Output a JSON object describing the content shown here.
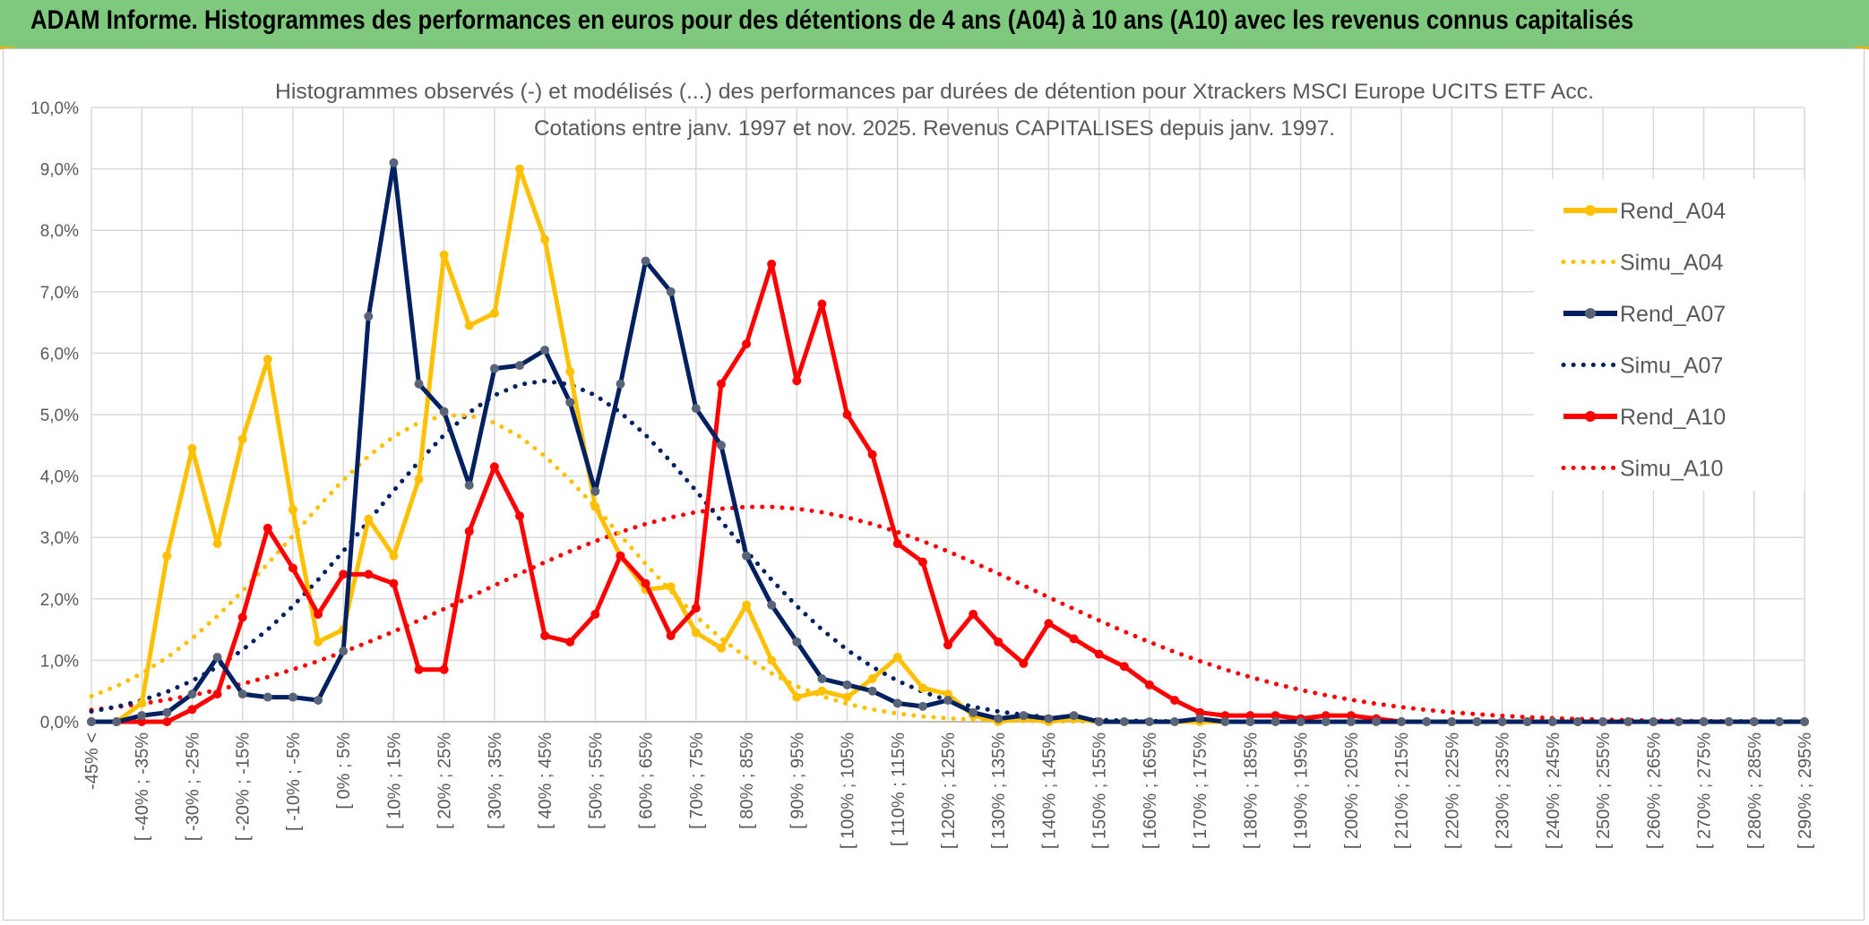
{
  "header": {
    "title": "ADAM Informe. Histogrammes des performances en euros pour des détentions de 4 ans (A04) à 10 ans (A10) avec les revenus connus capitalisés"
  },
  "colors": {
    "banner": "#7ec97e",
    "A04": "#ffc000",
    "A07": "#002060",
    "A10": "#ff0000",
    "marker_A07": "#5a6478"
  },
  "chart_data": {
    "type": "line",
    "title_line1": "Histogrammes observés (-) et modélisés (...) des performances par durées de détention pour Xtrackers MSCI Europe UCITS ETF Acc.",
    "title_line2": "Cotations entre janv. 1997 et nov. 2025. Revenus CAPITALISES depuis janv. 1997.",
    "ylim": [
      0,
      10
    ],
    "yticks": [
      "0,0%",
      "1,0%",
      "2,0%",
      "3,0%",
      "4,0%",
      "5,0%",
      "6,0%",
      "7,0%",
      "8,0%",
      "9,0%",
      "10,0%"
    ],
    "x_labels": [
      "-45% <",
      "[ -40% ; -35%",
      "[ -30% ; -25%",
      "[ -20% ; -15%",
      "[ -10% ; -5%",
      "[ 0% ; 5%",
      "[ 10% ; 15%",
      "[ 20% ; 25%",
      "[ 30% ; 35%",
      "[ 40% ; 45%",
      "[ 50% ; 55%",
      "[ 60% ; 65%",
      "[ 70% ; 75%",
      "[ 80% ; 85%",
      "[ 90% ; 95%",
      "[ 100% ; 105%",
      "[ 110% ; 115%",
      "[ 120% ; 125%",
      "[ 130% ; 135%",
      "[ 140% ; 145%",
      "[ 150% ; 155%",
      "[ 160% ; 165%",
      "[ 170% ; 175%",
      "[ 180% ; 185%",
      "[ 190% ; 195%",
      "[ 200% ; 205%",
      "[ 210% ; 215%",
      "[ 220% ; 225%",
      "[ 230% ; 235%",
      "[ 240% ; 245%",
      "[ 250% ; 255%",
      "[ 260% ; 265%",
      "[ 270% ; 275%",
      "[ 280% ; 285%",
      "[ 290% ; 295%"
    ],
    "n_points": 69,
    "series": [
      {
        "name": "Rend_A04",
        "kind": "observed",
        "color": "#ffc000",
        "values": [
          0,
          0,
          0.3,
          2.7,
          4.45,
          2.9,
          4.6,
          5.9,
          3.45,
          1.3,
          1.5,
          3.3,
          2.7,
          3.95,
          7.6,
          6.45,
          6.65,
          9.0,
          7.85,
          5.7,
          3.5,
          2.7,
          2.15,
          2.2,
          1.45,
          1.2,
          1.9,
          1.0,
          0.4,
          0.5,
          0.4,
          0.7,
          1.05,
          0.55,
          0.45,
          0.1,
          0,
          0.05,
          0,
          0.05,
          0,
          0,
          0,
          0,
          0,
          0,
          0,
          0,
          0,
          0,
          0,
          0,
          0,
          0,
          0,
          0,
          0,
          0,
          0,
          0,
          0,
          0,
          0,
          0,
          0,
          0,
          0,
          0,
          0
        ]
      },
      {
        "name": "Simu_A04",
        "kind": "model",
        "mu": 14.5,
        "sigma": 6.5,
        "peak": 5.0,
        "color": "#ffc000",
        "values": []
      },
      {
        "name": "Rend_A07",
        "kind": "observed",
        "color": "#002060",
        "values": [
          0,
          0,
          0.1,
          0.15,
          0.45,
          1.05,
          0.45,
          0.4,
          0.4,
          0.35,
          1.15,
          6.6,
          9.1,
          5.5,
          5.05,
          3.85,
          5.75,
          5.8,
          6.05,
          5.2,
          3.75,
          5.5,
          7.5,
          7.0,
          5.1,
          4.5,
          2.7,
          1.9,
          1.3,
          0.7,
          0.6,
          0.5,
          0.3,
          0.25,
          0.35,
          0.15,
          0.05,
          0.1,
          0.05,
          0.1,
          0,
          0,
          0,
          0,
          0.05,
          0,
          0,
          0,
          0,
          0,
          0,
          0,
          0,
          0,
          0,
          0,
          0,
          0,
          0,
          0,
          0,
          0,
          0,
          0,
          0,
          0,
          0,
          0,
          0
        ]
      },
      {
        "name": "Simu_A07",
        "kind": "model",
        "mu": 18.0,
        "sigma": 6.8,
        "peak": 5.55,
        "color": "#002060",
        "values": []
      },
      {
        "name": "Rend_A10",
        "kind": "observed",
        "color": "#ff0000",
        "values": [
          0,
          0,
          0,
          0,
          0.2,
          0.45,
          1.7,
          3.15,
          2.5,
          1.75,
          2.4,
          2.4,
          2.25,
          0.85,
          0.85,
          3.1,
          4.15,
          3.35,
          1.4,
          1.3,
          1.75,
          2.7,
          2.25,
          1.4,
          1.85,
          5.5,
          6.15,
          7.45,
          5.55,
          6.8,
          5.0,
          4.35,
          2.9,
          2.6,
          1.25,
          1.75,
          1.3,
          0.95,
          1.6,
          1.35,
          1.1,
          0.9,
          0.6,
          0.35,
          0.15,
          0.1,
          0.1,
          0.1,
          0.05,
          0.1,
          0.1,
          0.05,
          0,
          0,
          0,
          0,
          0,
          0,
          0,
          0,
          0,
          0,
          0,
          0,
          0,
          0,
          0,
          0,
          0
        ]
      },
      {
        "name": "Simu_A10",
        "kind": "model",
        "mu": 26.5,
        "sigma": 11.0,
        "peak": 3.5,
        "color": "#ff0000",
        "values": []
      }
    ],
    "legend": [
      "Rend_A04",
      "Simu_A04",
      "Rend_A07",
      "Simu_A07",
      "Rend_A10",
      "Simu_A10"
    ],
    "legend_position": "right",
    "grid": true
  }
}
